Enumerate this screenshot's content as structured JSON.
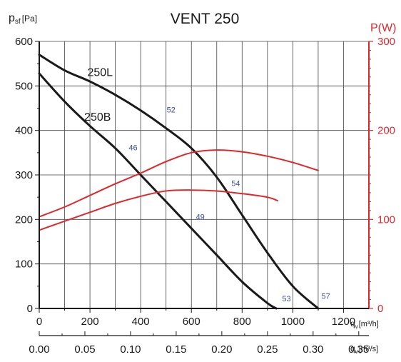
{
  "chart_data": {
    "type": "line",
    "title": "VENT 250",
    "ylabel_left": {
      "main": "p",
      "sub": "sf",
      "unit": "[Pa]"
    },
    "ylabel_right": "P(W)",
    "xlabel_primary": {
      "main": "q",
      "sub": "v",
      "unit": "[m³/h]"
    },
    "xlabel_secondary": {
      "main": "q",
      "sub": "v",
      "unit": "[m³/s]"
    },
    "x_axis_primary": {
      "range": [
        0,
        1300
      ],
      "ticks": [
        0,
        200,
        400,
        600,
        800,
        1000,
        1200
      ],
      "tick_labels": [
        "0",
        "200",
        "400",
        "600",
        "800",
        "1000",
        "1200"
      ]
    },
    "x_axis_secondary": {
      "ticks": [
        0,
        0.05,
        0.1,
        0.15,
        0.2,
        0.25,
        0.3,
        0.35
      ],
      "tick_labels": [
        "0.00",
        "0.05",
        "0.10",
        "0.15",
        "0.20",
        "0.25",
        "0.30",
        "0.35"
      ]
    },
    "y_axis_left": {
      "range": [
        0,
        600
      ],
      "ticks": [
        0,
        100,
        200,
        300,
        400,
        500,
        600
      ],
      "tick_labels": [
        "0",
        "100",
        "200",
        "300",
        "400",
        "500",
        "600"
      ]
    },
    "y_axis_right": {
      "range": [
        0,
        300
      ],
      "ticks": [
        0,
        100,
        200,
        300
      ],
      "tick_labels": [
        "0",
        "100",
        "200",
        "300"
      ]
    },
    "grid": true,
    "colors": {
      "pressure": "#1a1a1a",
      "power": "#e0262b",
      "right_axis": "#e0262b",
      "noise": "#3a4ea0",
      "grid": "#444444"
    },
    "series": [
      {
        "name": "250L",
        "axis": "left",
        "kind": "pressure",
        "x": [
          0,
          100,
          200,
          300,
          400,
          500,
          600,
          700,
          800,
          900,
          1000,
          1100
        ],
        "y": [
          570,
          535,
          510,
          480,
          445,
          405,
          360,
          295,
          210,
          125,
          50,
          0
        ]
      },
      {
        "name": "250B",
        "axis": "left",
        "kind": "pressure",
        "x": [
          0,
          100,
          200,
          300,
          400,
          500,
          600,
          700,
          800,
          900,
          935
        ],
        "y": [
          528,
          465,
          410,
          360,
          300,
          240,
          180,
          120,
          60,
          12,
          0
        ]
      },
      {
        "axis": "right",
        "kind": "power",
        "x": [
          0,
          100,
          200,
          300,
          400,
          500,
          600,
          700,
          800,
          900,
          1000,
          1100
        ],
        "y": [
          103,
          114,
          127,
          140,
          152,
          165,
          175,
          178,
          176,
          171,
          164,
          155
        ]
      },
      {
        "axis": "right",
        "kind": "power",
        "x": [
          0,
          100,
          200,
          300,
          400,
          500,
          600,
          700,
          800,
          900,
          940
        ],
        "y": [
          88,
          98,
          108,
          118,
          126,
          132,
          133,
          132,
          129,
          125,
          121
        ]
      }
    ],
    "annotations": [
      {
        "text": "250L",
        "x": 240,
        "y": 522
      },
      {
        "text": "250B",
        "x": 230,
        "y": 422
      },
      {
        "text": "52",
        "x": 520,
        "y": 440,
        "kind": "noise"
      },
      {
        "text": "46",
        "x": 370,
        "y": 355,
        "kind": "noise"
      },
      {
        "text": "54",
        "x": 775,
        "y": 275,
        "kind": "noise"
      },
      {
        "text": "49",
        "x": 635,
        "y": 200,
        "kind": "noise"
      },
      {
        "text": "53",
        "x": 975,
        "y": 16,
        "kind": "noise"
      },
      {
        "text": "57",
        "x": 1130,
        "y": 22,
        "kind": "noise"
      }
    ]
  }
}
